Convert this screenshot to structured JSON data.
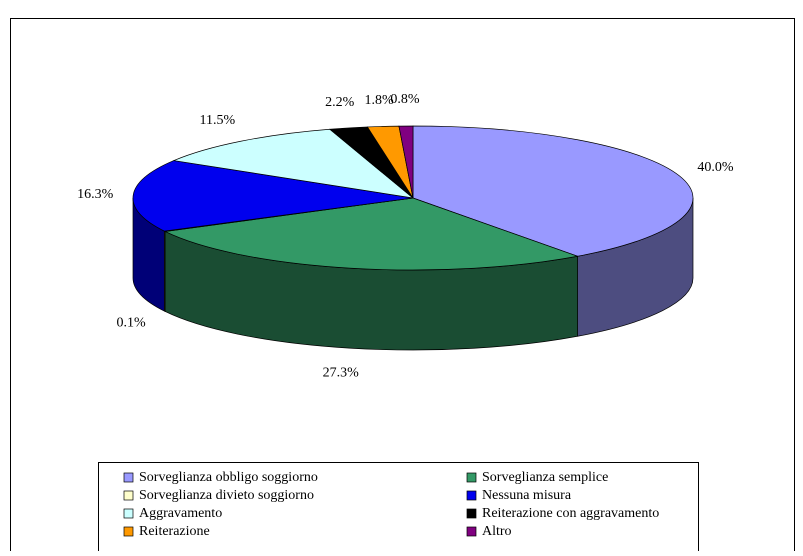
{
  "chart_data": {
    "type": "pie",
    "categories": [
      "Sorveglianza obbligo soggiorno",
      "Sorveglianza semplice",
      "Sorveglianza divieto soggiorno",
      "Nessuna misura",
      "Aggravamento",
      "Reiterazione con aggravamento",
      "Reiterazione",
      "Altro"
    ],
    "values": [
      40.0,
      27.3,
      0.1,
      16.3,
      11.5,
      2.2,
      1.8,
      0.8
    ],
    "value_labels": [
      "40.0%",
      "27.3%",
      "0.1%",
      "16.3%",
      "11.5%",
      "2.2%",
      "1.8%",
      "0.8%"
    ],
    "colors": [
      "#9999ff",
      "#339966",
      "#ffffcc",
      "#0000ee",
      "#ccffff",
      "#000000",
      "#ff9900",
      "#800080"
    ],
    "legend": "bottom"
  }
}
